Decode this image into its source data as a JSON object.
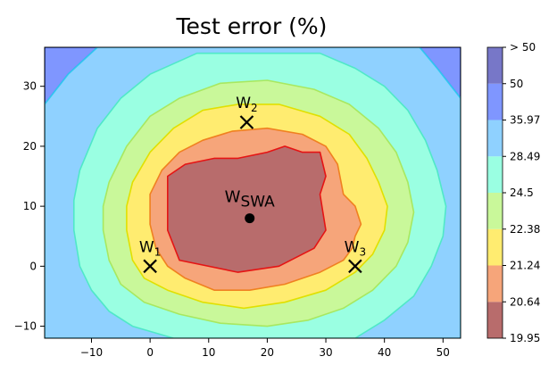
{
  "chart_data": {
    "type": "contour",
    "title": "Test error (%)",
    "xlabel": "",
    "ylabel": "",
    "xlim": [
      -18,
      53
    ],
    "ylim": [
      -12,
      36.5
    ],
    "x_ticks": [
      -10,
      0,
      10,
      20,
      30,
      40,
      50
    ],
    "y_ticks": [
      -10,
      0,
      10,
      20,
      30
    ],
    "grid": false,
    "colorbar": {
      "position": "right",
      "levels": [
        "19.95",
        "20.64",
        "21.24",
        "22.38",
        "24.5",
        "28.49",
        "35.97",
        "50",
        "> 50"
      ],
      "band_colors": [
        "#b86c6c",
        "#f6a57a",
        "#ffec70",
        "#c9f89a",
        "#9affe2",
        "#8fd1ff",
        "#7f96ff",
        "#7777c8"
      ]
    },
    "contour_bands": [
      {
        "name": "19.95",
        "fill": "#b86c6c",
        "line": "#e51414",
        "points": [
          [
            5,
            1
          ],
          [
            15,
            -1
          ],
          [
            22,
            0
          ],
          [
            28,
            3
          ],
          [
            30,
            6
          ],
          [
            29,
            12
          ],
          [
            30,
            15
          ],
          [
            29,
            19
          ],
          [
            26,
            19
          ],
          [
            23,
            20
          ],
          [
            20,
            19
          ],
          [
            15,
            18
          ],
          [
            11,
            18
          ],
          [
            6,
            17
          ],
          [
            3,
            15
          ],
          [
            3,
            10
          ],
          [
            3,
            6
          ]
        ]
      },
      {
        "name": "20.64",
        "fill": "#f6a57a",
        "line": "#f08020",
        "points": [
          [
            1,
            3
          ],
          [
            3,
            0
          ],
          [
            6,
            -2
          ],
          [
            11,
            -4
          ],
          [
            17,
            -4
          ],
          [
            23,
            -3
          ],
          [
            29,
            -1
          ],
          [
            33,
            1
          ],
          [
            34.5,
            3
          ],
          [
            35,
            5
          ],
          [
            36,
            7
          ],
          [
            35,
            10
          ],
          [
            33,
            12
          ],
          [
            32,
            17
          ],
          [
            30,
            20
          ],
          [
            26,
            22
          ],
          [
            20,
            23
          ],
          [
            14,
            22.5
          ],
          [
            9,
            21
          ],
          [
            5,
            19
          ],
          [
            2,
            16
          ],
          [
            0,
            12
          ],
          [
            0,
            7
          ]
        ]
      },
      {
        "name": "21.24",
        "fill": "#ffec70",
        "line": "#e0e000",
        "points": [
          [
            -4,
            6
          ],
          [
            -3,
            1
          ],
          [
            -1,
            -2
          ],
          [
            3,
            -4
          ],
          [
            9,
            -6
          ],
          [
            16,
            -7
          ],
          [
            23,
            -6
          ],
          [
            30,
            -4
          ],
          [
            35,
            -1
          ],
          [
            38,
            2
          ],
          [
            40,
            6
          ],
          [
            40.5,
            10
          ],
          [
            39,
            14
          ],
          [
            37,
            18
          ],
          [
            34,
            22
          ],
          [
            29,
            25
          ],
          [
            22,
            27
          ],
          [
            15,
            27
          ],
          [
            9,
            26
          ],
          [
            4,
            23
          ],
          [
            0,
            19
          ],
          [
            -3,
            14
          ],
          [
            -4,
            10
          ]
        ]
      },
      {
        "name": "22.38",
        "fill": "#c9f89a",
        "line": "#a8e860",
        "points": [
          [
            -8,
            6
          ],
          [
            -7,
            1
          ],
          [
            -5,
            -3
          ],
          [
            -1,
            -6
          ],
          [
            5,
            -8
          ],
          [
            12,
            -9.5
          ],
          [
            20,
            -10
          ],
          [
            27,
            -9
          ],
          [
            33,
            -7
          ],
          [
            38,
            -4
          ],
          [
            42,
            0
          ],
          [
            44,
            4
          ],
          [
            45,
            9
          ],
          [
            44,
            14
          ],
          [
            42,
            19
          ],
          [
            39,
            23
          ],
          [
            34,
            27
          ],
          [
            28,
            29.5
          ],
          [
            20,
            31
          ],
          [
            12,
            30.5
          ],
          [
            5,
            28
          ],
          [
            0,
            25
          ],
          [
            -4,
            20
          ],
          [
            -7,
            14
          ],
          [
            -8,
            10
          ]
        ]
      },
      {
        "name": "24.5",
        "fill": "#9affe2",
        "line": "#50e8c8",
        "points": [
          [
            -13,
            6
          ],
          [
            -12,
            0
          ],
          [
            -10,
            -4
          ],
          [
            -7,
            -7.5
          ],
          [
            -3,
            -10
          ],
          [
            4,
            -12
          ],
          [
            35,
            -12
          ],
          [
            40,
            -9
          ],
          [
            45,
            -5
          ],
          [
            48,
            0
          ],
          [
            50,
            5
          ],
          [
            50.5,
            10
          ],
          [
            49,
            16
          ],
          [
            47,
            21
          ],
          [
            44,
            26
          ],
          [
            40,
            30
          ],
          [
            35,
            33
          ],
          [
            29,
            35.5
          ],
          [
            8,
            35.5
          ],
          [
            0,
            32
          ],
          [
            -5,
            28
          ],
          [
            -9,
            23
          ],
          [
            -12,
            16
          ],
          [
            -13,
            11
          ]
        ]
      },
      {
        "name": "28.49",
        "fill": "#8fd1ff",
        "line": "#30c8f0",
        "points": [
          [
            -18,
            -12
          ],
          [
            53,
            -12
          ],
          [
            53,
            28
          ],
          [
            49,
            33
          ],
          [
            46,
            36.5
          ],
          [
            -9,
            36.5
          ],
          [
            -14,
            32
          ],
          [
            -18,
            27
          ]
        ]
      },
      {
        "name": "35.97",
        "fill": "#7f96ff",
        "line": "#2850e0",
        "points": [
          [
            -18,
            36.5
          ],
          [
            -9,
            36.5
          ],
          [
            -14,
            32
          ],
          [
            -18,
            27
          ]
        ]
      },
      {
        "name": "35.97",
        "fill": "#7f96ff",
        "line": "#2850e0",
        "points": [
          [
            46,
            36.5
          ],
          [
            53,
            36.5
          ],
          [
            53,
            28
          ],
          [
            49,
            33
          ]
        ]
      }
    ],
    "points": [
      {
        "label": "W",
        "sub": "1",
        "x": 0,
        "y": 0,
        "marker": "x"
      },
      {
        "label": "W",
        "sub": "2",
        "x": 16.5,
        "y": 24,
        "marker": "x"
      },
      {
        "label": "W",
        "sub": "3",
        "x": 35,
        "y": 0,
        "marker": "x"
      },
      {
        "label": "W",
        "sub": "SWA",
        "x": 17,
        "y": 8,
        "marker": "dot"
      }
    ]
  }
}
